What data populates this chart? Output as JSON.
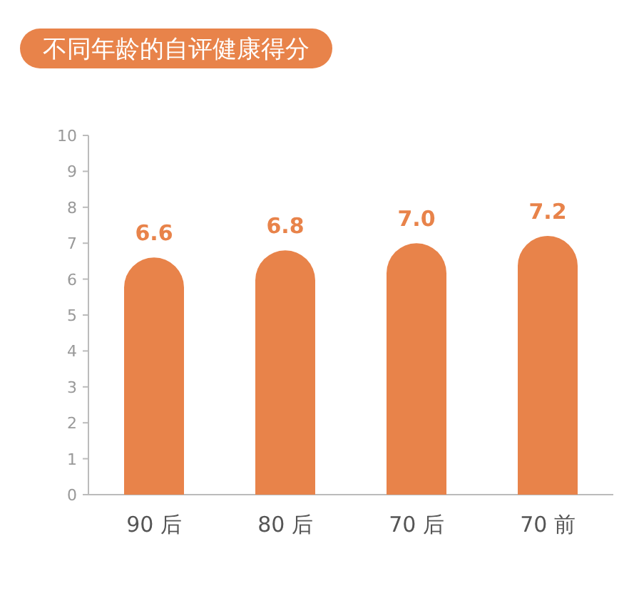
{
  "chart_data": {
    "type": "bar",
    "title": "不同年龄的自评健康得分",
    "categories": [
      "90 后",
      "80 后",
      "70 后",
      "70 前"
    ],
    "values": [
      6.6,
      6.8,
      7.0,
      7.2
    ],
    "value_labels": [
      "6.6",
      "6.8",
      "7.0",
      "7.2"
    ],
    "color": "#e8834a",
    "ylim": [
      0,
      10
    ],
    "yticks": [
      0,
      1,
      2,
      3,
      4,
      5,
      6,
      7,
      8,
      9,
      10
    ],
    "grid": false
  }
}
